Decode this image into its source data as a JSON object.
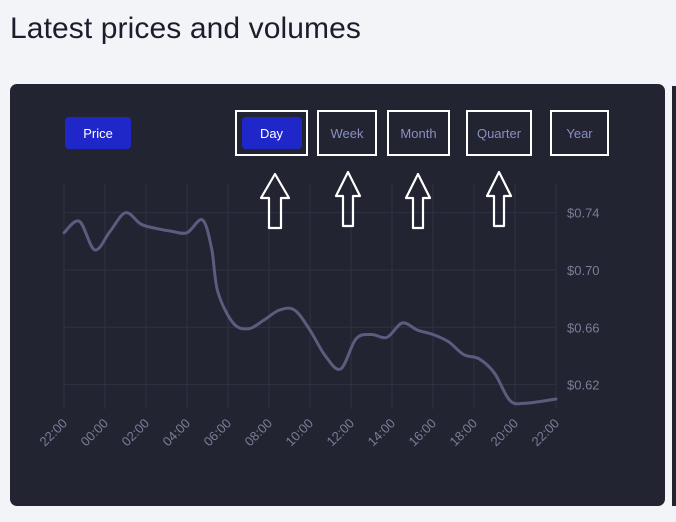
{
  "page": {
    "title": "Latest prices and volumes"
  },
  "controls": {
    "price_label": "Price",
    "ranges": [
      {
        "label": "Day",
        "active": true
      },
      {
        "label": "Week",
        "active": false
      },
      {
        "label": "Month",
        "active": false
      },
      {
        "label": "Quarter",
        "active": false
      },
      {
        "label": "Year",
        "active": false
      }
    ]
  },
  "colors": {
    "accent": "#2027c9",
    "card_bg": "#222431",
    "line": "#5a5d7e",
    "grid": "#2f3242",
    "tick_text": "#7a7e98"
  },
  "chart_data": {
    "type": "line",
    "x": [
      "22:00",
      "00:00",
      "02:00",
      "04:00",
      "06:00",
      "08:00",
      "10:00",
      "12:00",
      "14:00",
      "16:00",
      "18:00",
      "20:00",
      "22:00"
    ],
    "y_ticks": [
      "$0.74",
      "$0.70",
      "$0.66",
      "$0.62"
    ],
    "y_tick_values": [
      0.74,
      0.7,
      0.66,
      0.62
    ],
    "ylim": [
      0.603,
      0.76
    ],
    "xlim": [
      0,
      24
    ],
    "series": [
      {
        "points": [
          [
            0.0,
            0.726
          ],
          [
            0.75,
            0.734
          ],
          [
            1.5,
            0.714
          ],
          [
            2.25,
            0.727
          ],
          [
            3.0,
            0.74
          ],
          [
            3.75,
            0.732
          ],
          [
            4.5,
            0.729
          ],
          [
            5.25,
            0.727
          ],
          [
            6.0,
            0.726
          ],
          [
            6.75,
            0.735
          ],
          [
            7.2,
            0.715
          ],
          [
            7.5,
            0.685
          ],
          [
            8.25,
            0.663
          ],
          [
            9.0,
            0.659
          ],
          [
            9.75,
            0.665
          ],
          [
            10.5,
            0.672
          ],
          [
            11.25,
            0.672
          ],
          [
            12.0,
            0.658
          ],
          [
            12.75,
            0.64
          ],
          [
            13.5,
            0.631
          ],
          [
            14.25,
            0.652
          ],
          [
            15.0,
            0.655
          ],
          [
            15.75,
            0.653
          ],
          [
            16.5,
            0.663
          ],
          [
            17.25,
            0.658
          ],
          [
            18.0,
            0.655
          ],
          [
            18.75,
            0.65
          ],
          [
            19.5,
            0.641
          ],
          [
            20.25,
            0.638
          ],
          [
            21.0,
            0.628
          ],
          [
            21.75,
            0.609
          ],
          [
            22.5,
            0.607
          ],
          [
            24.0,
            0.61
          ]
        ]
      }
    ],
    "grid": true
  }
}
